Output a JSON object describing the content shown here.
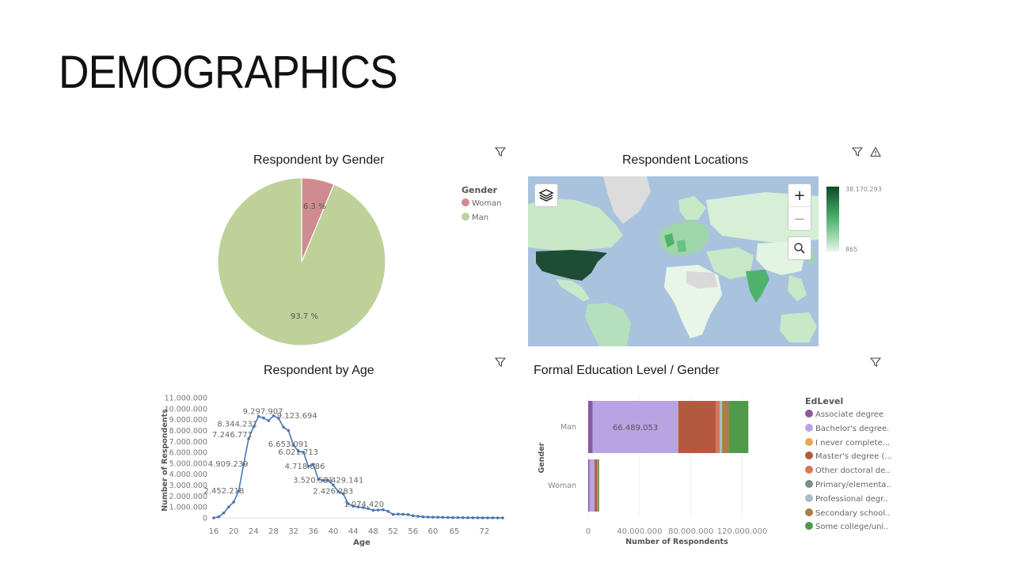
{
  "page": {
    "title": "DEMOGRAPHICS"
  },
  "icons": {
    "filter": "filter-icon",
    "warning": "warning-icon",
    "layers": "layers-icon",
    "zoom_in": "zoom-in-icon",
    "zoom_out": "zoom-out-icon",
    "search": "search-icon"
  },
  "gender_chart": {
    "title": "Respondent by Gender",
    "legend_title": "Gender",
    "legend": [
      {
        "label": "Woman",
        "color": "#cf8c90"
      },
      {
        "label": "Man",
        "color": "#bdd199"
      }
    ],
    "slice_labels": [
      "6.3 %",
      "93.7 %"
    ]
  },
  "map_chart": {
    "title": "Respondent Locations",
    "scale_max": "38.170.293",
    "scale_min": "865",
    "zoom_in": "+",
    "zoom_out": "−"
  },
  "age_chart": {
    "title": "Respondent by Age",
    "xlabel": "Age",
    "ylabel": "Number of Respondents",
    "y_ticks": [
      "0",
      "1.000.000",
      "2.000.000",
      "3.000.000",
      "4.000.000",
      "5.000.000",
      "6.000.000",
      "7.000.000",
      "8.000.000",
      "9.000.000",
      "10.000.000",
      "11.000.000"
    ],
    "x_ticks": [
      "16",
      "20",
      "24",
      "28",
      "32",
      "36",
      "40",
      "44",
      "48",
      "52",
      "56",
      "60",
      "65",
      "72"
    ],
    "data_labels": [
      "2.452.218",
      "4.909.239",
      "7.246.771",
      "8.344.231",
      "9.297.907",
      "9.123.694",
      "6.653.091",
      "6.021.713",
      "4.718.886",
      "3.520.501",
      "3.429.141",
      "2.426.283",
      "1.074.420"
    ]
  },
  "edu_chart": {
    "title": "Formal Education Level / Gender",
    "legend_title": "EdLevel",
    "ylabel": "Gender",
    "xlabel": "Number of Respondents",
    "x_ticks": [
      "0",
      "40.000.000",
      "80.000.000",
      "120.000.000"
    ],
    "categories": [
      "Man",
      "Woman"
    ],
    "bar_label": "66.489.053",
    "legend": [
      {
        "label": "Associate degree",
        "color": "#8a5aa3"
      },
      {
        "label": "Bachelor's degree.",
        "color": "#b9a3e3"
      },
      {
        "label": "I never complete...",
        "color": "#e8a94b"
      },
      {
        "label": "Master's degree (...",
        "color": "#b35940"
      },
      {
        "label": "Other doctoral de..",
        "color": "#e0715a"
      },
      {
        "label": "Primary/elementa..",
        "color": "#7f8f8a"
      },
      {
        "label": "Professional degr..",
        "color": "#a8bec8"
      },
      {
        "label": "Secondary school..",
        "color": "#a88043"
      },
      {
        "label": "Some college/uni..",
        "color": "#4e9a4b"
      }
    ]
  },
  "chart_data": [
    {
      "type": "pie",
      "title": "Respondent by Gender",
      "categories": [
        "Woman",
        "Man"
      ],
      "values": [
        6.3,
        93.7
      ],
      "unit": "%",
      "legend": "top-right"
    },
    {
      "type": "heatmap",
      "title": "Respondent Locations",
      "scale_range": [
        865,
        38170293
      ],
      "legend": "right"
    },
    {
      "type": "line",
      "title": "Respondent by Age",
      "xlabel": "Age",
      "ylabel": "Number of Respondents",
      "ylim": [
        0,
        11000000
      ],
      "xlim": [
        16,
        74
      ],
      "x": [
        16,
        17,
        18,
        19,
        20,
        21,
        22,
        23,
        24,
        25,
        26,
        27,
        28,
        29,
        30,
        31,
        32,
        33,
        34,
        35,
        36,
        37,
        38,
        39,
        40,
        41,
        42,
        43,
        44,
        45,
        46,
        47,
        48,
        49,
        50,
        51,
        52,
        53,
        54,
        55,
        56,
        57,
        58,
        59,
        60,
        61,
        62,
        63,
        64,
        65,
        66,
        67,
        68,
        69,
        70,
        71,
        72,
        73,
        74
      ],
      "values": [
        0,
        100000,
        450000,
        1000000,
        1450000,
        2452218,
        4909239,
        7246771,
        8344231,
        9297907,
        9150000,
        8900000,
        9350000,
        9123694,
        8300000,
        8000000,
        6653091,
        6100000,
        6021713,
        4718886,
        4900000,
        3520501,
        3429141,
        3429141,
        3000000,
        2426283,
        2200000,
        1300000,
        1074420,
        1000000,
        950000,
        850000,
        700000,
        720000,
        750000,
        600000,
        320000,
        350000,
        330000,
        300000,
        200000,
        150000,
        100000,
        80000,
        70000,
        60000,
        50000,
        40000,
        30000,
        25000,
        20000,
        15000,
        12000,
        10000,
        8000,
        6000,
        5000,
        4000,
        3000
      ],
      "point_labels": [
        {
          "x": 21,
          "y": 2452218
        },
        {
          "x": 22,
          "y": 4909239
        },
        {
          "x": 23,
          "y": 7246771
        },
        {
          "x": 24,
          "y": 8344231
        },
        {
          "x": 25,
          "y": 9297907
        },
        {
          "x": 29,
          "y": 9123694
        },
        {
          "x": 32,
          "y": 6653091
        },
        {
          "x": 34,
          "y": 6021713
        },
        {
          "x": 35,
          "y": 4718886
        },
        {
          "x": 37,
          "y": 3520501
        },
        {
          "x": 38,
          "y": 3429141
        },
        {
          "x": 41,
          "y": 2426283
        },
        {
          "x": 44,
          "y": 1074420
        }
      ],
      "grid": false
    },
    {
      "type": "bar",
      "orientation": "horizontal",
      "stacked": true,
      "title": "Formal Education Level / Gender",
      "categories": [
        "Man",
        "Woman"
      ],
      "xlabel": "Number of Respondents",
      "ylabel": "Gender",
      "xlim": [
        0,
        140000000
      ],
      "series": [
        {
          "name": "Associate degree",
          "values": [
            3500000,
            1000000
          ]
        },
        {
          "name": "Bachelor's degree.",
          "values": [
            66489053,
            4000000
          ]
        },
        {
          "name": "I never complete...",
          "values": [
            300000,
            50000
          ]
        },
        {
          "name": "Master's degree (...",
          "values": [
            29000000,
            1800000
          ]
        },
        {
          "name": "Other doctoral de..",
          "values": [
            2500000,
            300000
          ]
        },
        {
          "name": "Primary/elementa..",
          "values": [
            800000,
            50000
          ]
        },
        {
          "name": "Professional degr..",
          "values": [
            1700000,
            150000
          ]
        },
        {
          "name": "Secondary school..",
          "values": [
            5500000,
            400000
          ]
        },
        {
          "name": "Some college/uni..",
          "values": [
            15000000,
            800000
          ]
        }
      ],
      "legend": "right"
    }
  ]
}
